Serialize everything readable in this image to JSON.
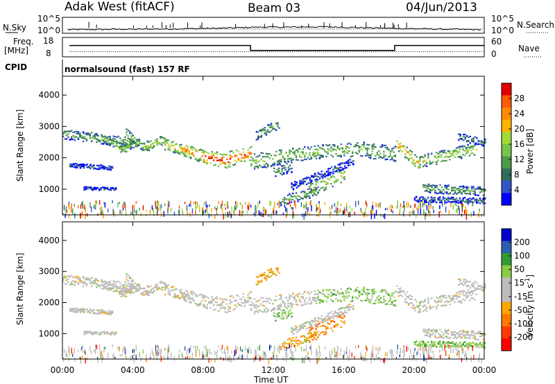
{
  "header": {
    "radar": "Adak West (fitACF)",
    "beam": "Beam 03",
    "date": "04/Jun/2013"
  },
  "panel_labels": {
    "nsky": "N.Sky",
    "nsearch": "N.Search",
    "freq": "Freq.",
    "freq_unit": "[MHz]",
    "nave": "Nave",
    "cpid": "CPID",
    "cpid_value": "normalsound (fast) 157 RF"
  },
  "colors": {
    "power": [
      "#0000ff",
      "#3355cc",
      "#2f6e5a",
      "#4f9a4a",
      "#76c24a",
      "#9edc3a",
      "#ffb400",
      "#ff8c00",
      "#ff5a00",
      "#e00000"
    ],
    "velocity": [
      "#ff0000",
      "#ff3a00",
      "#ff7a00",
      "#ffa500",
      "#bcbcbc",
      "#bcbcbc",
      "#88cc44",
      "#339933",
      "#2d5fb0",
      "#0000cc"
    ],
    "ground_scatter": "#bcbcbc"
  },
  "chart_data": [
    {
      "type": "line",
      "name": "N.Sky / N.Search",
      "y_left_ticks": [
        "10^5",
        "10^0"
      ],
      "y_right_ticks": [
        "10^5",
        "10^0"
      ],
      "x_hours": [
        0,
        1,
        2,
        3,
        4,
        5,
        6,
        7,
        8,
        9,
        10,
        11,
        12,
        13,
        14,
        15,
        16,
        17,
        18,
        19,
        20,
        21,
        22,
        23,
        24
      ],
      "nsky_log10": [
        0.8,
        0.9,
        0.9,
        1.0,
        1.0,
        1.1,
        1.1,
        1.2,
        1.3,
        1.4,
        1.6,
        1.8,
        1.8,
        1.8,
        1.9,
        1.9,
        1.8,
        1.6,
        1.5,
        1.3,
        1.2,
        1.1,
        1.0,
        0.9,
        0.8
      ]
    },
    {
      "type": "line",
      "name": "Freq / Nave",
      "y_left_ticks": [
        "18",
        "8"
      ],
      "y_right_ticks": [
        "60",
        "0"
      ],
      "segments": [
        {
          "from_hour": 0.4,
          "to_hour": 10.7,
          "freq_mhz": 14.0
        },
        {
          "from_hour": 10.7,
          "to_hour": 18.9,
          "freq_mhz": 11.0
        },
        {
          "from_hour": 18.9,
          "to_hour": 24,
          "freq_mhz": 14.0
        }
      ],
      "nave": 14
    },
    {
      "type": "heatmap",
      "name": "Power",
      "ylabel": "Slant Range [km]",
      "y_ticks": [
        1000,
        2000,
        3000,
        4000
      ],
      "ylim": [
        180,
        4600
      ],
      "colorbar_label": "Power [dB]",
      "colorbar_ticks": [
        4,
        8,
        12,
        16,
        20,
        24,
        28
      ],
      "clim": [
        0,
        30
      ]
    },
    {
      "type": "heatmap",
      "name": "Velocity",
      "ylabel": "Slant Range [km]",
      "y_ticks": [
        1000,
        2000,
        3000,
        4000
      ],
      "ylim": [
        180,
        4600
      ],
      "xlabel": "Time UT",
      "x_ticks": [
        "00:00",
        "04:00",
        "08:00",
        "12:00",
        "16:00",
        "20:00",
        "00:00"
      ],
      "colorbar_label": "Velocity [m s^-1]",
      "colorbar_ticks": [
        200,
        100,
        50,
        15,
        -15,
        -50,
        -100,
        -200
      ]
    }
  ],
  "bands": [
    {
      "t": [
        0.0,
        4.0
      ],
      "r": [
        2780,
        2500
      ],
      "w": 160,
      "p": 10,
      "v": "gs"
    },
    {
      "t": [
        0.4,
        2.8
      ],
      "r": [
        1780,
        1700
      ],
      "w": 70,
      "p": 5,
      "v": "gs"
    },
    {
      "t": [
        1.2,
        3.0
      ],
      "r": [
        1050,
        1020
      ],
      "w": 50,
      "p": 5,
      "v": "gs"
    },
    {
      "t": [
        2.2,
        3.6
      ],
      "r": [
        2650,
        2300
      ],
      "w": 120,
      "p": 14,
      "v": "gs"
    },
    {
      "t": [
        3.2,
        4.3
      ],
      "r": [
        2300,
        2500
      ],
      "w": 110,
      "p": 13,
      "v": "gs"
    },
    {
      "t": [
        3.6,
        4.8
      ],
      "r": [
        2800,
        2300
      ],
      "w": 150,
      "p": 12,
      "v": "gs"
    },
    {
      "t": [
        4.8,
        5.8
      ],
      "r": [
        2400,
        2600
      ],
      "w": 160,
      "p": 14,
      "v": "gs"
    },
    {
      "t": [
        5.8,
        7.0
      ],
      "r": [
        2450,
        2250
      ],
      "w": 180,
      "p": 17,
      "v": "gs"
    },
    {
      "t": [
        6.8,
        8.0
      ],
      "r": [
        2300,
        2050
      ],
      "w": 200,
      "p": 21,
      "v": "gs"
    },
    {
      "t": [
        8.0,
        9.5
      ],
      "r": [
        2050,
        1900
      ],
      "w": 230,
      "p": 25,
      "v": "gs"
    },
    {
      "t": [
        9.5,
        10.7
      ],
      "r": [
        2000,
        2150
      ],
      "w": 230,
      "p": 23,
      "v": "gs"
    },
    {
      "t": [
        10.7,
        12.4
      ],
      "r": [
        1900,
        2050
      ],
      "w": 260,
      "p": 12,
      "v": "gs"
    },
    {
      "t": [
        11.0,
        12.3
      ],
      "r": [
        2750,
        3100
      ],
      "w": 160,
      "p": 10,
      "v": "neg"
    },
    {
      "t": [
        12.0,
        13.0
      ],
      "r": [
        1600,
        1750
      ],
      "w": 200,
      "p": 8,
      "v": "pos"
    },
    {
      "t": [
        12.4,
        14.5
      ],
      "r": [
        2100,
        2200
      ],
      "w": 220,
      "p": 13,
      "v": "gs"
    },
    {
      "t": [
        14.5,
        17.3
      ],
      "r": [
        2220,
        2300
      ],
      "w": 220,
      "p": 12,
      "v": "pos"
    },
    {
      "t": [
        17.3,
        18.9
      ],
      "r": [
        2250,
        2150
      ],
      "w": 240,
      "p": 11,
      "v": "pos"
    },
    {
      "t": [
        12.3,
        14.5
      ],
      "r": [
        650,
        950
      ],
      "w": 160,
      "p": 10,
      "v": "neg"
    },
    {
      "t": [
        14.0,
        16.0
      ],
      "r": [
        1000,
        1500
      ],
      "w": 230,
      "p": 15,
      "v": "negs"
    },
    {
      "t": [
        13.0,
        16.5
      ],
      "r": [
        1100,
        1900
      ],
      "w": 120,
      "p": 5,
      "v": "gs"
    },
    {
      "t": [
        19.0,
        20.3
      ],
      "r": [
        2450,
        1800
      ],
      "w": 200,
      "p": 19,
      "v": "gs"
    },
    {
      "t": [
        20.3,
        23.5
      ],
      "r": [
        1900,
        2300
      ],
      "w": 200,
      "p": 14,
      "v": "gs"
    },
    {
      "t": [
        20.5,
        24.0
      ],
      "r": [
        1050,
        950
      ],
      "w": 140,
      "p": 10,
      "v": "gs"
    },
    {
      "t": [
        20.0,
        24.0
      ],
      "r": [
        700,
        650
      ],
      "w": 90,
      "p": 6,
      "v": "pos"
    },
    {
      "t": [
        22.5,
        24.0
      ],
      "r": [
        2700,
        2500
      ],
      "w": 120,
      "p": 7,
      "v": "gs"
    }
  ]
}
